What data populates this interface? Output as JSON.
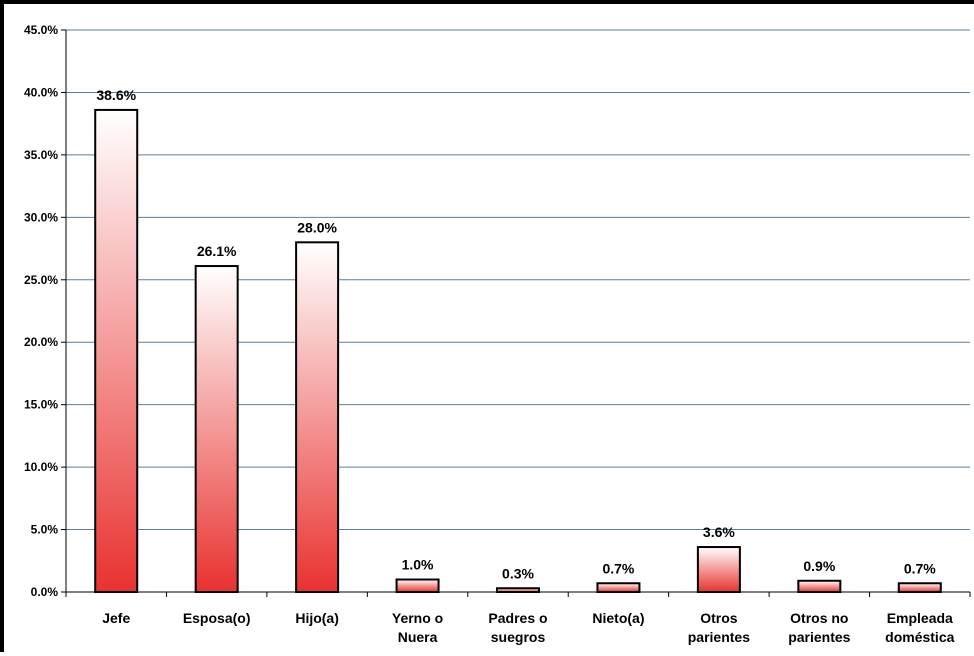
{
  "chart_data": {
    "type": "bar",
    "title": "",
    "xlabel": "",
    "ylabel": "",
    "ylim": [
      0,
      45
    ],
    "grid": true,
    "y_tick_labels": [
      "0.0%",
      "5.0%",
      "10.0%",
      "15.0%",
      "20.0%",
      "25.0%",
      "30.0%",
      "35.0%",
      "40.0%",
      "45.0%"
    ],
    "categories": [
      [
        "Jefe"
      ],
      [
        "Esposa(o)"
      ],
      [
        "Hijo(a)"
      ],
      [
        "Yerno o",
        "Nuera"
      ],
      [
        "Padres o",
        "suegros"
      ],
      [
        "Nieto(a)"
      ],
      [
        "Otros",
        "parientes"
      ],
      [
        "Otros no",
        "parientes"
      ],
      [
        "Empleada",
        "doméstica"
      ]
    ],
    "values": [
      38.6,
      26.1,
      28.0,
      1.0,
      0.3,
      0.7,
      3.6,
      0.9,
      0.7
    ],
    "data_labels": [
      "38.6%",
      "26.1%",
      "28.0%",
      "1.0%",
      "0.3%",
      "0.7%",
      "3.6%",
      "0.9%",
      "0.7%"
    ],
    "colors": {
      "bar_top": "#ffffff",
      "bar_bottom": "#e8322f",
      "bar_outline": "#000000",
      "gridline": "#5f7f95"
    }
  }
}
